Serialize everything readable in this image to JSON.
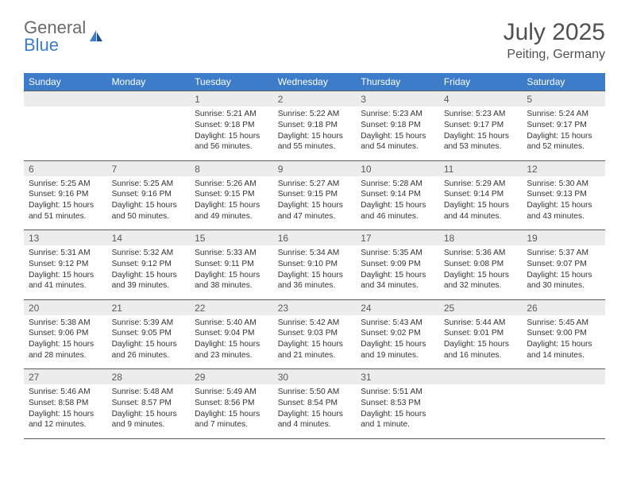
{
  "logo": {
    "word1": "General",
    "word2": "Blue"
  },
  "title": "July 2025",
  "location": "Peiting, Germany",
  "colors": {
    "header_bg": "#3d7cc9",
    "header_text": "#ffffff",
    "daynum_bg": "#ececec",
    "border": "#5a5a5a",
    "body_text": "#333333",
    "title_text": "#505050",
    "logo_gray": "#6a6a6a",
    "logo_blue": "#3d7cc9"
  },
  "daynames": [
    "Sunday",
    "Monday",
    "Tuesday",
    "Wednesday",
    "Thursday",
    "Friday",
    "Saturday"
  ],
  "weeks": [
    [
      null,
      null,
      {
        "n": "1",
        "sr": "5:21 AM",
        "ss": "9:18 PM",
        "dl": "15 hours and 56 minutes."
      },
      {
        "n": "2",
        "sr": "5:22 AM",
        "ss": "9:18 PM",
        "dl": "15 hours and 55 minutes."
      },
      {
        "n": "3",
        "sr": "5:23 AM",
        "ss": "9:18 PM",
        "dl": "15 hours and 54 minutes."
      },
      {
        "n": "4",
        "sr": "5:23 AM",
        "ss": "9:17 PM",
        "dl": "15 hours and 53 minutes."
      },
      {
        "n": "5",
        "sr": "5:24 AM",
        "ss": "9:17 PM",
        "dl": "15 hours and 52 minutes."
      }
    ],
    [
      {
        "n": "6",
        "sr": "5:25 AM",
        "ss": "9:16 PM",
        "dl": "15 hours and 51 minutes."
      },
      {
        "n": "7",
        "sr": "5:25 AM",
        "ss": "9:16 PM",
        "dl": "15 hours and 50 minutes."
      },
      {
        "n": "8",
        "sr": "5:26 AM",
        "ss": "9:15 PM",
        "dl": "15 hours and 49 minutes."
      },
      {
        "n": "9",
        "sr": "5:27 AM",
        "ss": "9:15 PM",
        "dl": "15 hours and 47 minutes."
      },
      {
        "n": "10",
        "sr": "5:28 AM",
        "ss": "9:14 PM",
        "dl": "15 hours and 46 minutes."
      },
      {
        "n": "11",
        "sr": "5:29 AM",
        "ss": "9:14 PM",
        "dl": "15 hours and 44 minutes."
      },
      {
        "n": "12",
        "sr": "5:30 AM",
        "ss": "9:13 PM",
        "dl": "15 hours and 43 minutes."
      }
    ],
    [
      {
        "n": "13",
        "sr": "5:31 AM",
        "ss": "9:12 PM",
        "dl": "15 hours and 41 minutes."
      },
      {
        "n": "14",
        "sr": "5:32 AM",
        "ss": "9:12 PM",
        "dl": "15 hours and 39 minutes."
      },
      {
        "n": "15",
        "sr": "5:33 AM",
        "ss": "9:11 PM",
        "dl": "15 hours and 38 minutes."
      },
      {
        "n": "16",
        "sr": "5:34 AM",
        "ss": "9:10 PM",
        "dl": "15 hours and 36 minutes."
      },
      {
        "n": "17",
        "sr": "5:35 AM",
        "ss": "9:09 PM",
        "dl": "15 hours and 34 minutes."
      },
      {
        "n": "18",
        "sr": "5:36 AM",
        "ss": "9:08 PM",
        "dl": "15 hours and 32 minutes."
      },
      {
        "n": "19",
        "sr": "5:37 AM",
        "ss": "9:07 PM",
        "dl": "15 hours and 30 minutes."
      }
    ],
    [
      {
        "n": "20",
        "sr": "5:38 AM",
        "ss": "9:06 PM",
        "dl": "15 hours and 28 minutes."
      },
      {
        "n": "21",
        "sr": "5:39 AM",
        "ss": "9:05 PM",
        "dl": "15 hours and 26 minutes."
      },
      {
        "n": "22",
        "sr": "5:40 AM",
        "ss": "9:04 PM",
        "dl": "15 hours and 23 minutes."
      },
      {
        "n": "23",
        "sr": "5:42 AM",
        "ss": "9:03 PM",
        "dl": "15 hours and 21 minutes."
      },
      {
        "n": "24",
        "sr": "5:43 AM",
        "ss": "9:02 PM",
        "dl": "15 hours and 19 minutes."
      },
      {
        "n": "25",
        "sr": "5:44 AM",
        "ss": "9:01 PM",
        "dl": "15 hours and 16 minutes."
      },
      {
        "n": "26",
        "sr": "5:45 AM",
        "ss": "9:00 PM",
        "dl": "15 hours and 14 minutes."
      }
    ],
    [
      {
        "n": "27",
        "sr": "5:46 AM",
        "ss": "8:58 PM",
        "dl": "15 hours and 12 minutes."
      },
      {
        "n": "28",
        "sr": "5:48 AM",
        "ss": "8:57 PM",
        "dl": "15 hours and 9 minutes."
      },
      {
        "n": "29",
        "sr": "5:49 AM",
        "ss": "8:56 PM",
        "dl": "15 hours and 7 minutes."
      },
      {
        "n": "30",
        "sr": "5:50 AM",
        "ss": "8:54 PM",
        "dl": "15 hours and 4 minutes."
      },
      {
        "n": "31",
        "sr": "5:51 AM",
        "ss": "8:53 PM",
        "dl": "15 hours and 1 minute."
      },
      null,
      null
    ]
  ],
  "labels": {
    "sunrise": "Sunrise:",
    "sunset": "Sunset:",
    "daylight": "Daylight:"
  }
}
